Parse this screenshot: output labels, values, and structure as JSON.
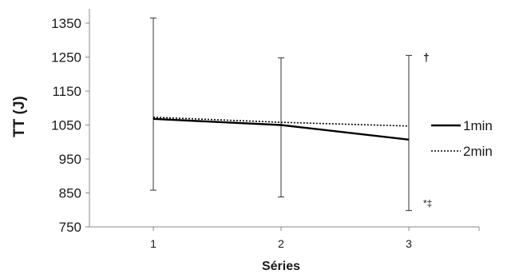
{
  "chart_data": {
    "type": "line",
    "title": "",
    "xlabel": "Séries",
    "ylabel": "TT (J)",
    "x": [
      1,
      2,
      3
    ],
    "x_tick_labels": [
      "1",
      "2",
      "3"
    ],
    "ylim": [
      750,
      1350
    ],
    "y_ticks": [
      750,
      850,
      950,
      1050,
      1150,
      1250,
      1350
    ],
    "series": [
      {
        "name": "1min",
        "style": "solid",
        "values": [
          1068,
          1050,
          1007
        ],
        "error_high": [
          1365,
          1248,
          1255
        ],
        "error_low": [
          858,
          838,
          798
        ]
      },
      {
        "name": "2min",
        "style": "dotted",
        "values": [
          1073,
          1058,
          1047
        ]
      }
    ],
    "annotations": [
      {
        "text": "†",
        "x": 3,
        "y": 1255
      },
      {
        "text": "*‡",
        "x": 3,
        "y": 798
      }
    ],
    "legend_position": "right",
    "grid": false,
    "colors": {
      "line": "#000000",
      "axis": "#888888",
      "text": "#1a1a1a"
    }
  }
}
